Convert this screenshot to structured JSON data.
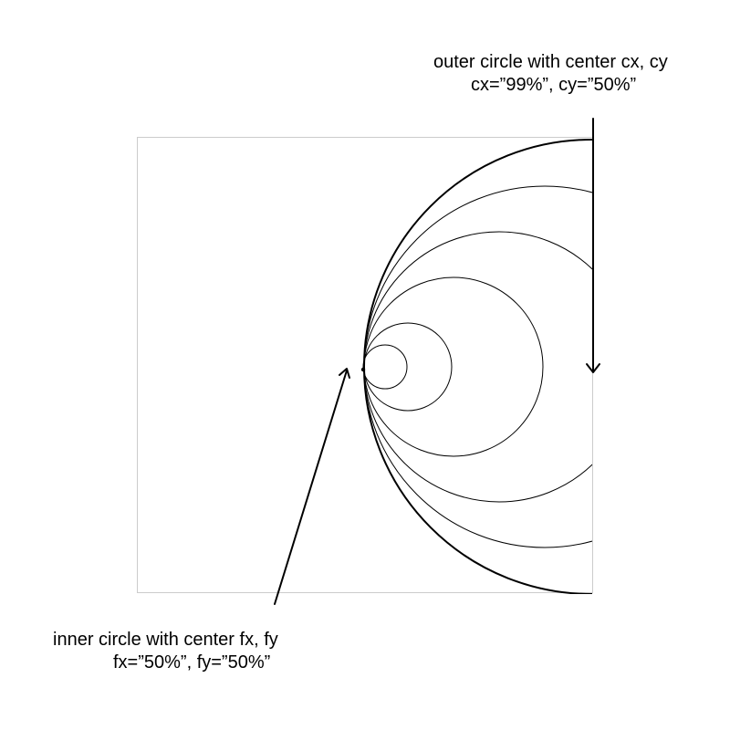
{
  "outer_label": {
    "line1": "outer circle with center cx, cy",
    "line2": "cx=”99%”, cy=”50%”"
  },
  "inner_label": {
    "line1": "inner circle with center fx, fy",
    "line2": "fx=”50%”, fy=”50%”"
  },
  "colors": {
    "stroke": "#000000",
    "frame": "#cccccc",
    "background": "#ffffff"
  }
}
